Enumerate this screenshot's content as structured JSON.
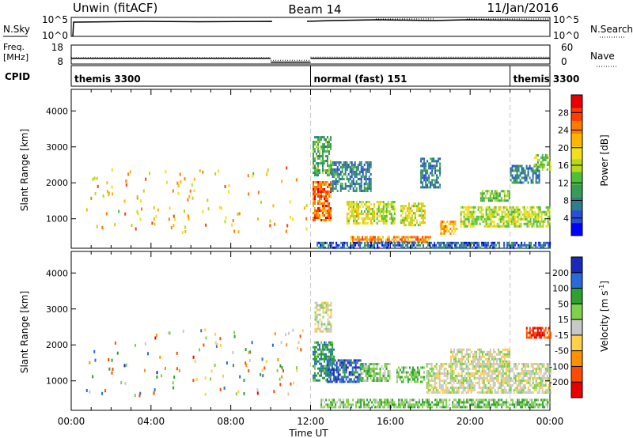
{
  "header": {
    "left": "Unwin (fitACF)",
    "center": "Beam 14",
    "right": "11/Jan/2016"
  },
  "nsky_panel": {
    "left_label": "N.Sky",
    "left_ticks": [
      "10^5",
      "10^0"
    ],
    "right_label": "N.Search",
    "right_ticks": [
      "10^5",
      "10^0"
    ]
  },
  "freq_panel": {
    "left_label_1": "Freq.",
    "left_label_2": "[MHz]",
    "left_ticks": [
      "18",
      "8"
    ],
    "right_label": "Nave",
    "right_ticks": [
      "60",
      "0"
    ],
    "freq_levels_mhz": [
      {
        "from_hour": 0,
        "to_hour": 10,
        "value": 11
      },
      {
        "from_hour": 10,
        "to_hour": 12,
        "value": 9
      },
      {
        "from_hour": 12,
        "to_hour": 24,
        "value": 11
      }
    ],
    "nave_levels": [
      {
        "from_hour": 0,
        "to_hour": 10,
        "value": 20
      },
      {
        "from_hour": 10,
        "to_hour": 12,
        "value": 12
      },
      {
        "from_hour": 12,
        "to_hour": 24,
        "value": 22
      }
    ]
  },
  "cpid_panel": {
    "label": "CPID",
    "segments": [
      {
        "text": "themis 3300",
        "start_hour": 0
      },
      {
        "text": "normal (fast) 151",
        "start_hour": 12
      },
      {
        "text": "themis 3300",
        "start_hour": 22
      }
    ],
    "boundaries_hours": [
      12,
      22
    ]
  },
  "chart_data": [
    {
      "type": "heatmap",
      "name": "power",
      "ylabel": "Slant Range [km]",
      "xlim_hours": [
        0,
        24
      ],
      "ylim_km": [
        180,
        4600
      ],
      "yticks": [
        "1000",
        "2000",
        "3000",
        "4000"
      ],
      "colorbar": {
        "label": "Power [dB]",
        "ticks": [
          "4",
          "8",
          "12",
          "16",
          "20",
          "24",
          "28"
        ],
        "range": [
          0,
          32
        ],
        "colors": [
          "#0000ff",
          "#2a4fd6",
          "#2e7d8a",
          "#3a9a5a",
          "#4fbf3a",
          "#b8d81c",
          "#f0e020",
          "#ffb400",
          "#ff7a00",
          "#ff3d00",
          "#e80000"
        ]
      },
      "blocks": [
        {
          "t": [
            12.1,
            13.0
          ],
          "r": [
            950,
            2050
          ],
          "v": 26
        },
        {
          "t": [
            12.1,
            13.0
          ],
          "r": [
            2200,
            3300
          ],
          "v": 12
        },
        {
          "t": [
            13.0,
            15.0
          ],
          "r": [
            1800,
            2600
          ],
          "v": 8
        },
        {
          "t": [
            13.8,
            15.2
          ],
          "r": [
            850,
            1500
          ],
          "v": 18
        },
        {
          "t": [
            15.3,
            16.2
          ],
          "r": [
            850,
            1500
          ],
          "v": 16
        },
        {
          "t": [
            16.5,
            17.7
          ],
          "r": [
            800,
            1450
          ],
          "v": 18
        },
        {
          "t": [
            14.0,
            18.0
          ],
          "r": [
            350,
            520
          ],
          "v": 24
        },
        {
          "t": [
            12.3,
            24.0
          ],
          "r": [
            220,
            360
          ],
          "v": 6
        },
        {
          "t": [
            18.5,
            19.3
          ],
          "r": [
            600,
            950
          ],
          "v": 22
        },
        {
          "t": [
            19.5,
            24.0
          ],
          "r": [
            800,
            1350
          ],
          "v": 16
        },
        {
          "t": [
            20.5,
            22.0
          ],
          "r": [
            1500,
            1800
          ],
          "v": 14
        },
        {
          "t": [
            22.0,
            23.5
          ],
          "r": [
            2000,
            2500
          ],
          "v": 8
        },
        {
          "t": [
            23.2,
            24.0
          ],
          "r": [
            2400,
            2800
          ],
          "v": 14
        },
        {
          "t": [
            17.5,
            18.5
          ],
          "r": [
            1900,
            2700
          ],
          "v": 8
        }
      ],
      "sparse": {
        "t": [
          0.7,
          11.8
        ],
        "r": [
          600,
          2500
        ],
        "v_range": [
          14,
          28
        ]
      }
    },
    {
      "type": "heatmap",
      "name": "velocity",
      "ylabel": "Slant Range [km]",
      "xlabel": "Time UT",
      "xlim_hours": [
        0,
        24
      ],
      "ylim_km": [
        180,
        4600
      ],
      "yticks": [
        "1000",
        "2000",
        "3000",
        "4000"
      ],
      "xticks": [
        "00:00",
        "04:00",
        "08:00",
        "12:00",
        "16:00",
        "20:00",
        "00:00"
      ],
      "colorbar": {
        "label": "Velocity [m s^-1]",
        "ticks": [
          "200",
          "100",
          "50",
          "15",
          "-15",
          "-50",
          "-100",
          "-200"
        ],
        "range": [
          -250,
          250
        ],
        "colors": [
          "#e80000",
          "#ff4a00",
          "#ff9000",
          "#ffd04a",
          "#c8c8c8",
          "#7fd04a",
          "#2fa030",
          "#2a6ad8",
          "#1a2ab8"
        ]
      },
      "blocks": [
        {
          "t": [
            12.1,
            13.2
          ],
          "r": [
            1000,
            2100
          ],
          "v": 120
        },
        {
          "t": [
            12.8,
            14.5
          ],
          "r": [
            1000,
            1600
          ],
          "v": 180
        },
        {
          "t": [
            14.5,
            16.0
          ],
          "r": [
            1000,
            1500
          ],
          "v": 60
        },
        {
          "t": [
            16.3,
            17.7
          ],
          "r": [
            1000,
            1400
          ],
          "v": 70
        },
        {
          "t": [
            17.8,
            24.0
          ],
          "r": [
            700,
            1500
          ],
          "v": 0
        },
        {
          "t": [
            19.0,
            22.0
          ],
          "r": [
            1500,
            1900
          ],
          "v": 0
        },
        {
          "t": [
            12.5,
            24.0
          ],
          "r": [
            250,
            500
          ],
          "v": 70
        },
        {
          "t": [
            22.8,
            24.0
          ],
          "r": [
            2200,
            2500
          ],
          "v": -180
        },
        {
          "t": [
            12.2,
            13.0
          ],
          "r": [
            2400,
            3200
          ],
          "v": 0
        }
      ],
      "sparse": {
        "t": [
          0.7,
          11.8
        ],
        "r": [
          600,
          2500
        ],
        "v_range": [
          -200,
          200
        ]
      }
    }
  ]
}
